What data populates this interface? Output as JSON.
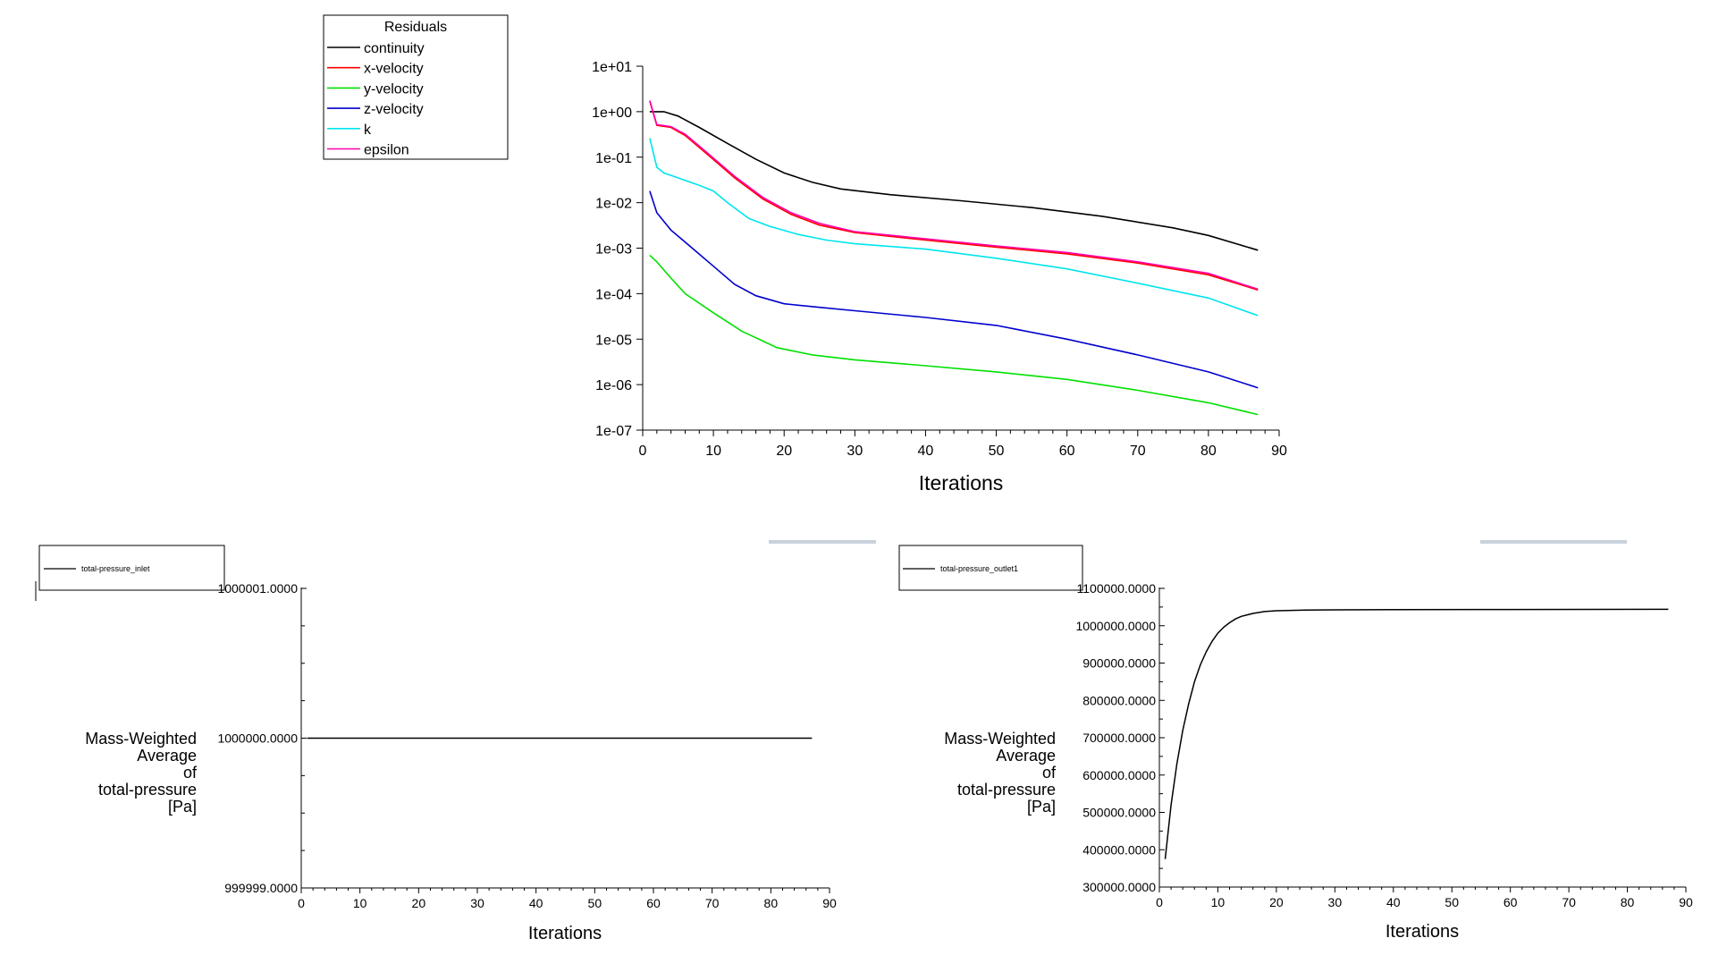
{
  "chart_data": [
    {
      "type": "line",
      "id": "residuals",
      "title": "",
      "xlabel": "Iterations",
      "ylabel": "",
      "yscale": "log",
      "xlim": [
        0,
        90
      ],
      "ylim_exp": [
        -7,
        1
      ],
      "x_ticks": [
        "0",
        "10",
        "20",
        "30",
        "40",
        "50",
        "60",
        "70",
        "80",
        "90"
      ],
      "y_ticks": [
        "1e-07",
        "1e-06",
        "1e-05",
        "1e-04",
        "1e-03",
        "1e-02",
        "1e-01",
        "1e+00",
        "1e+01"
      ],
      "legend_title": "Residuals",
      "legend_position": "top-left",
      "series": [
        {
          "name": "continuity",
          "color": "#000000",
          "x": [
            1,
            3,
            5,
            8,
            12,
            16,
            20,
            24,
            28,
            35,
            45,
            55,
            65,
            75,
            80,
            87
          ],
          "values": [
            1.0,
            1.0,
            0.8,
            0.45,
            0.2,
            0.09,
            0.045,
            0.028,
            0.02,
            0.015,
            0.011,
            0.0078,
            0.005,
            0.0028,
            0.0019,
            0.0009
          ]
        },
        {
          "name": "x-velocity",
          "color": "#ff0000",
          "x": [
            1,
            2,
            4,
            6,
            9,
            13,
            17,
            21,
            25,
            30,
            40,
            50,
            60,
            70,
            80,
            87
          ],
          "values": [
            1.7,
            0.5,
            0.45,
            0.3,
            0.12,
            0.035,
            0.012,
            0.0055,
            0.0032,
            0.0022,
            0.0015,
            0.00105,
            0.00075,
            0.00047,
            0.00026,
            0.00012
          ]
        },
        {
          "name": "y-velocity",
          "color": "#00e000",
          "x": [
            1,
            2,
            4,
            6,
            10,
            14,
            19,
            24,
            30,
            40,
            50,
            60,
            70,
            80,
            87
          ],
          "values": [
            0.0007,
            0.0005,
            0.00022,
            0.0001,
            3.8e-05,
            1.5e-05,
            6.5e-06,
            4.5e-06,
            3.5e-06,
            2.6e-06,
            1.9e-06,
            1.3e-06,
            7.5e-07,
            4e-07,
            2.2e-07
          ]
        },
        {
          "name": "z-velocity",
          "color": "#0000cc",
          "x": [
            1,
            2,
            4,
            7,
            10,
            13,
            16,
            20,
            25,
            30,
            40,
            50,
            60,
            70,
            80,
            87
          ],
          "values": [
            0.018,
            0.006,
            0.0025,
            0.001,
            0.0004,
            0.00016,
            9e-05,
            6e-05,
            5e-05,
            4.2e-05,
            3e-05,
            2e-05,
            1e-05,
            4.5e-06,
            1.9e-06,
            8.5e-07
          ]
        },
        {
          "name": "k",
          "color": "#00e5ee",
          "x": [
            1,
            2,
            3,
            5,
            8,
            10,
            12,
            15,
            18,
            22,
            26,
            30,
            40,
            50,
            60,
            70,
            80,
            87
          ],
          "values": [
            0.26,
            0.06,
            0.045,
            0.035,
            0.024,
            0.018,
            0.01,
            0.0045,
            0.003,
            0.002,
            0.0015,
            0.00125,
            0.00095,
            0.0006,
            0.00035,
            0.00017,
            8e-05,
            3.3e-05
          ]
        },
        {
          "name": "epsilon",
          "color": "#ff00aa",
          "x": [
            1,
            2,
            4,
            6,
            9,
            13,
            17,
            21,
            25,
            30,
            40,
            50,
            60,
            70,
            80,
            87
          ],
          "values": [
            1.75,
            0.52,
            0.47,
            0.32,
            0.13,
            0.038,
            0.013,
            0.006,
            0.0035,
            0.0023,
            0.0016,
            0.00112,
            0.0008,
            0.0005,
            0.00028,
            0.000125
          ]
        }
      ]
    },
    {
      "type": "line",
      "id": "total-pressure-inlet",
      "xlabel": "Iterations",
      "ylabel_lines": [
        "Mass-Weighted",
        "Average",
        "of",
        "total-pressure",
        "[Pa]"
      ],
      "xlim": [
        0,
        90
      ],
      "ylim": [
        999999,
        1000001
      ],
      "x_ticks": [
        "0",
        "10",
        "20",
        "30",
        "40",
        "50",
        "60",
        "70",
        "80",
        "90"
      ],
      "y_ticks": [
        "999999.0000",
        "1000000.0000",
        "1000001.0000"
      ],
      "legend_position": "top-left",
      "series": [
        {
          "name": "total-pressure_inlet",
          "color": "#000000",
          "x": [
            1,
            87
          ],
          "values": [
            1000000,
            1000000
          ]
        }
      ]
    },
    {
      "type": "line",
      "id": "total-pressure-outlet",
      "xlabel": "Iterations",
      "ylabel_lines": [
        "Mass-Weighted",
        "Average",
        "of",
        "total-pressure",
        "[Pa]"
      ],
      "xlim": [
        0,
        90
      ],
      "ylim": [
        300000,
        1100000
      ],
      "x_ticks": [
        "0",
        "10",
        "20",
        "30",
        "40",
        "50",
        "60",
        "70",
        "80",
        "90"
      ],
      "y_ticks": [
        "300000.0000",
        "400000.0000",
        "500000.0000",
        "600000.0000",
        "700000.0000",
        "800000.0000",
        "900000.0000",
        "1000000.0000",
        "1100000.0000"
      ],
      "legend_position": "top-left",
      "series": [
        {
          "name": "total-pressure_outlet1",
          "color": "#000000",
          "x": [
            1,
            2,
            3,
            4,
            5,
            6,
            7,
            8,
            9,
            10,
            11,
            12,
            13,
            14,
            16,
            18,
            20,
            25,
            30,
            40,
            60,
            87
          ],
          "values": [
            375000,
            520000,
            630000,
            720000,
            790000,
            850000,
            895000,
            930000,
            958000,
            980000,
            996000,
            1008000,
            1018000,
            1025000,
            1033000,
            1038000,
            1040000,
            1042000,
            1042500,
            1043000,
            1043500,
            1044000
          ]
        }
      ]
    }
  ]
}
